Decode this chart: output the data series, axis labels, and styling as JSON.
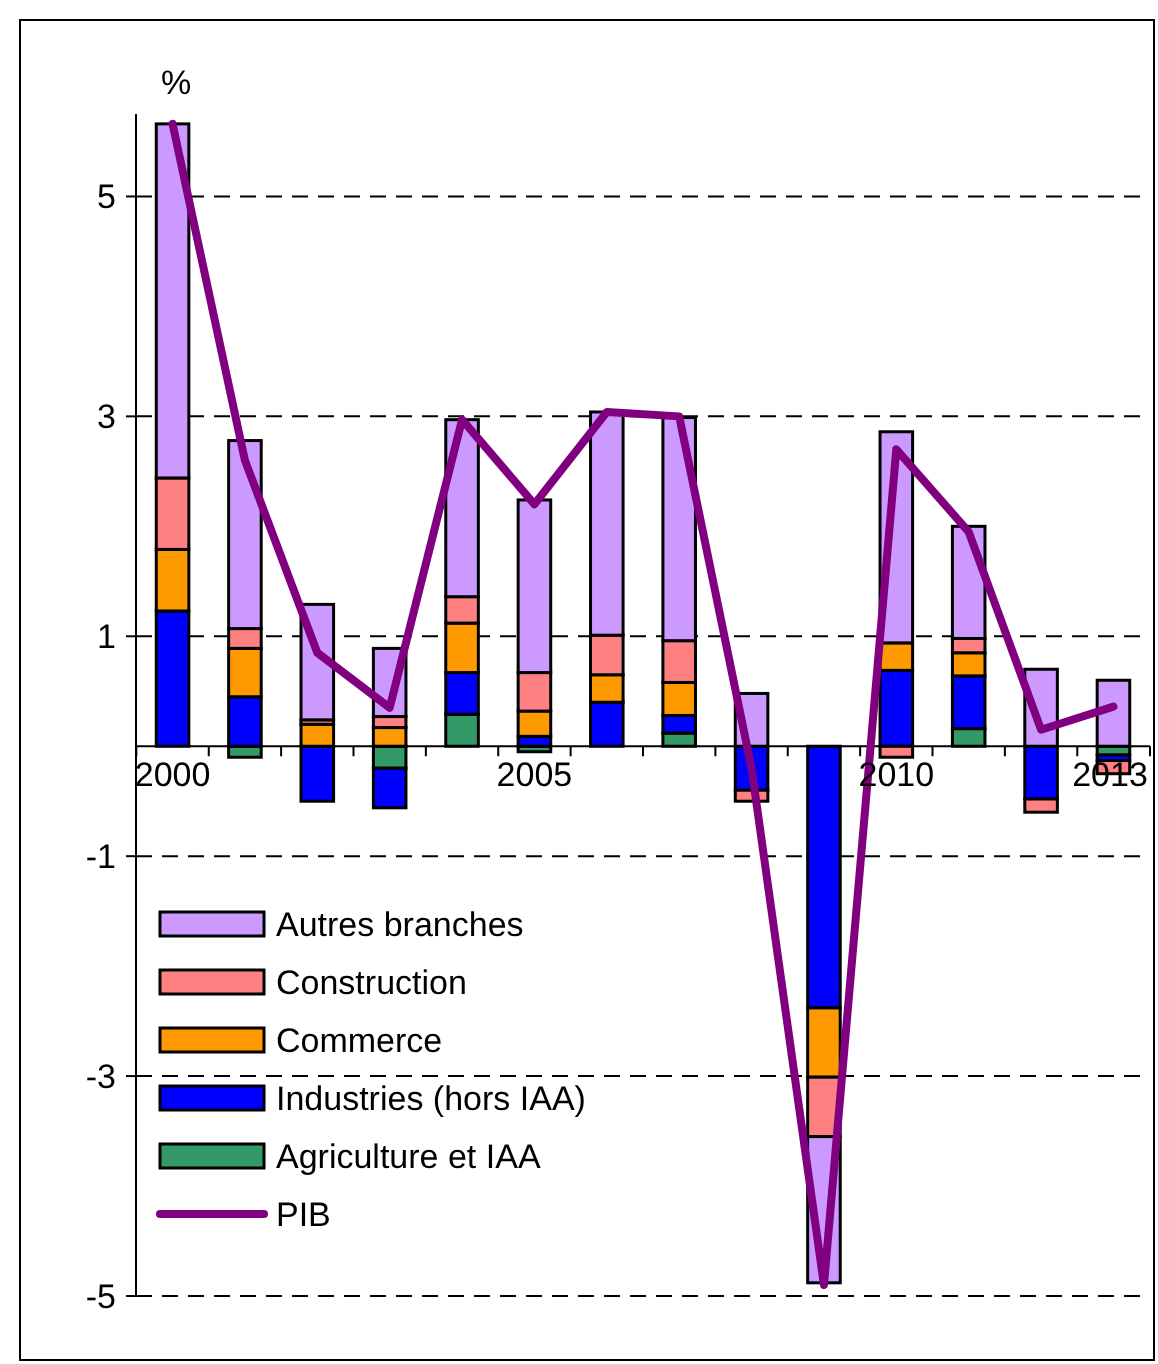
{
  "chart_data": {
    "type": "bar",
    "stacked": true,
    "ylabel": "%",
    "categories": [
      "2000",
      null,
      null,
      null,
      null,
      "2005",
      null,
      null,
      null,
      null,
      "2010",
      null,
      null,
      "2013"
    ],
    "series": [
      {
        "name": "Agriculture et IAA",
        "color": "#339966",
        "values": [
          0,
          -0.1,
          null,
          -0.2,
          0.29,
          -0.05,
          0,
          0.12,
          0,
          null,
          null,
          0.16,
          0,
          -0.08
        ]
      },
      {
        "name": "Industries (hors IAA)",
        "color": "#0000ff",
        "values": [
          1.23,
          0.45,
          -0.5,
          -0.36,
          0.38,
          0.09,
          0.4,
          0.16,
          -0.4,
          -2.38,
          0.69,
          0.48,
          -0.48,
          -0.05
        ]
      },
      {
        "name": "Commerce",
        "color": "#ff9900",
        "values": [
          0.56,
          0.44,
          0.2,
          0.17,
          0.45,
          0.23,
          0.25,
          0.3,
          null,
          -0.63,
          0.25,
          0.21,
          0,
          0
        ]
      },
      {
        "name": "Construction",
        "color": "#ff8080",
        "values": [
          0.65,
          0.18,
          0.04,
          0.1,
          0.24,
          0.35,
          0.36,
          0.38,
          -0.1,
          -0.54,
          -0.1,
          0.13,
          -0.12,
          -0.12
        ]
      },
      {
        "name": "Autres branches",
        "color": "#cc99ff",
        "values": [
          3.22,
          1.71,
          1.05,
          0.62,
          1.61,
          1.57,
          2.03,
          2.03,
          0.48,
          -1.33,
          1.92,
          1.02,
          0.7,
          0.6
        ]
      },
      {
        "name": "PIB",
        "type": "line",
        "color": "#800080",
        "values": [
          5.66,
          2.6,
          0.85,
          0.35,
          2.97,
          2.2,
          3.04,
          3.0,
          -0.2,
          -4.9,
          2.7,
          1.95,
          0.15,
          0.36
        ]
      }
    ],
    "ylim": [
      -5,
      5.75
    ],
    "yticks": [
      -5,
      -3,
      -1,
      1,
      3,
      5
    ],
    "grid": "y",
    "legend": "bottom left",
    "marker": "none",
    "line_style": "solid"
  }
}
